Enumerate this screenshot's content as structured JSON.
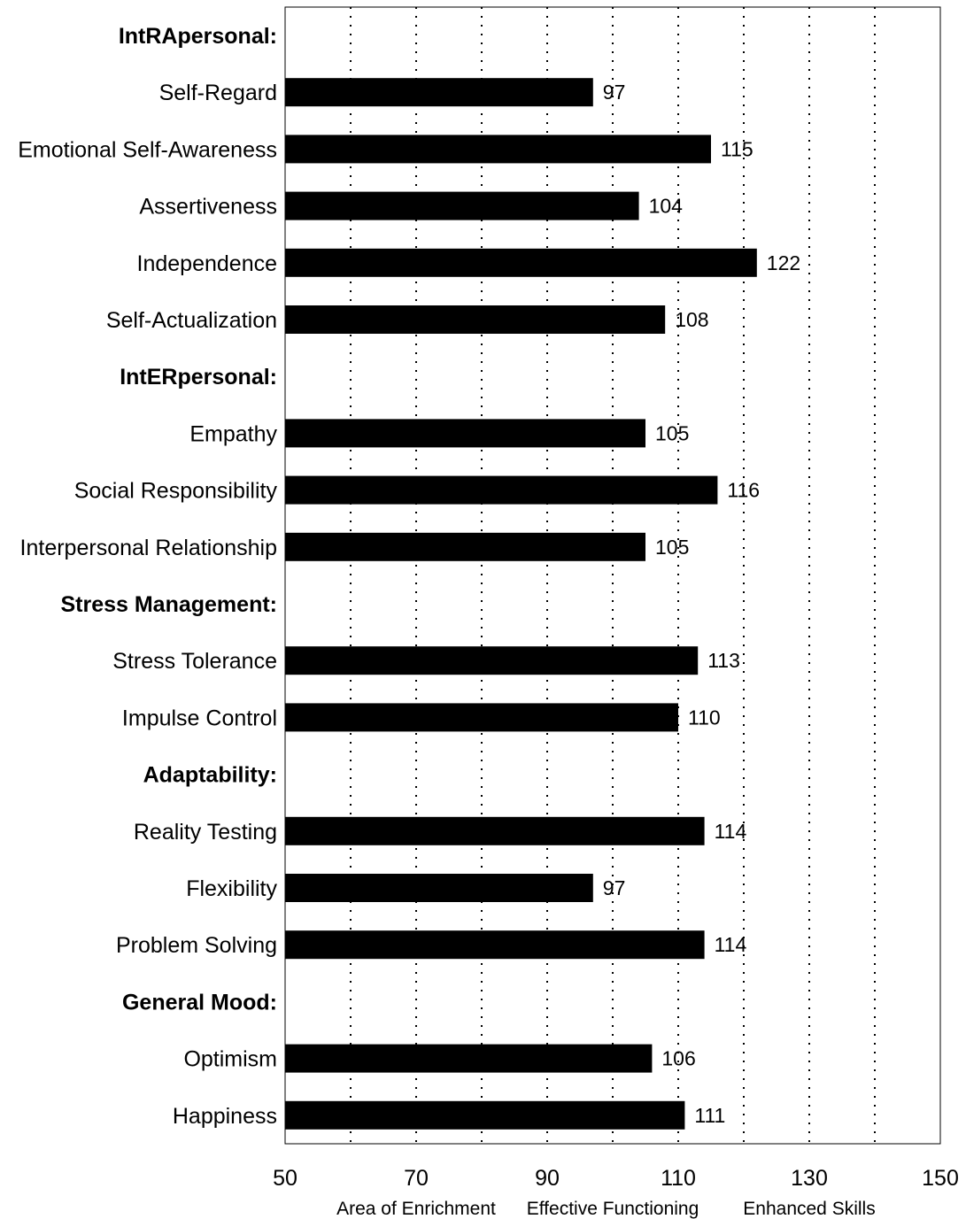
{
  "colors": {
    "bar": "#000000",
    "grid": "#000000",
    "background": "#ffffff"
  },
  "chart_data": {
    "type": "bar",
    "orientation": "horizontal",
    "xlim": [
      50,
      150
    ],
    "xticks": [
      50,
      70,
      90,
      110,
      130,
      150
    ],
    "xtick_labels": [
      "50",
      "70",
      "90",
      "110",
      "130",
      "150"
    ],
    "grid": "vertical dotted lines every 10",
    "zone_labels": [
      "Area of Enrichment",
      "Effective Functioning",
      "Enhanced Skills"
    ],
    "zone_centers": [
      70,
      100,
      130
    ],
    "rows": [
      {
        "kind": "group",
        "label": "IntRApersonal:"
      },
      {
        "kind": "bar",
        "label": "Self-Regard",
        "value": 97
      },
      {
        "kind": "bar",
        "label": "Emotional Self-Awareness",
        "value": 115
      },
      {
        "kind": "bar",
        "label": "Assertiveness",
        "value": 104
      },
      {
        "kind": "bar",
        "label": "Independence",
        "value": 122
      },
      {
        "kind": "bar",
        "label": "Self-Actualization",
        "value": 108
      },
      {
        "kind": "group",
        "label": "IntERpersonal:"
      },
      {
        "kind": "bar",
        "label": "Empathy",
        "value": 105
      },
      {
        "kind": "bar",
        "label": "Social Responsibility",
        "value": 116
      },
      {
        "kind": "bar",
        "label": "Interpersonal Relationship",
        "value": 105
      },
      {
        "kind": "group",
        "label": "Stress Management:"
      },
      {
        "kind": "bar",
        "label": "Stress Tolerance",
        "value": 113
      },
      {
        "kind": "bar",
        "label": "Impulse Control",
        "value": 110
      },
      {
        "kind": "group",
        "label": "Adaptability:"
      },
      {
        "kind": "bar",
        "label": "Reality Testing",
        "value": 114
      },
      {
        "kind": "bar",
        "label": "Flexibility",
        "value": 97
      },
      {
        "kind": "bar",
        "label": "Problem Solving",
        "value": 114
      },
      {
        "kind": "group",
        "label": "General Mood:"
      },
      {
        "kind": "bar",
        "label": "Optimism",
        "value": 106
      },
      {
        "kind": "bar",
        "label": "Happiness",
        "value": 111
      }
    ]
  }
}
